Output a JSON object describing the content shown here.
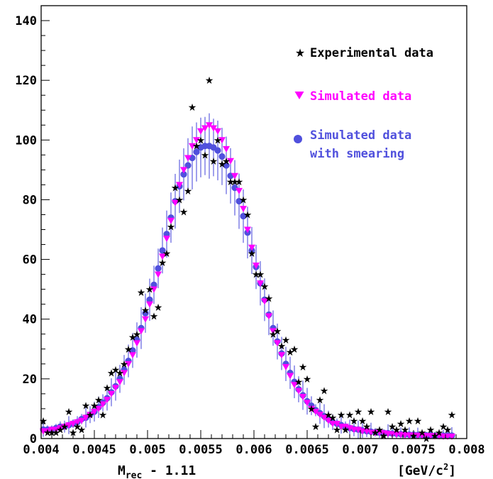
{
  "chart_data": {
    "type": "scatter",
    "xlim": [
      0.004,
      0.008
    ],
    "ylim": [
      0,
      145
    ],
    "x_ticks": [
      0.004,
      0.0045,
      0.005,
      0.0055,
      0.006,
      0.0065,
      0.007,
      0.0075,
      0.008
    ],
    "x_tick_labels": [
      "0.004",
      "0.0045",
      "0.005",
      "0.0055",
      "0.006",
      "0.0065",
      "0.007",
      "0.0075",
      "0.008"
    ],
    "y_ticks": [
      0,
      20,
      40,
      60,
      80,
      100,
      120,
      140
    ],
    "y_tick_labels": [
      "0",
      "20",
      "40",
      "60",
      "80",
      "100",
      "120",
      "140"
    ],
    "xlabel": {
      "main": "M",
      "sub": "rec",
      "rest": " - 1.11"
    },
    "xunit": {
      "pre": "[GeV/c",
      "sup": "2",
      "post": "]"
    },
    "legend_position": "top-right",
    "series": [
      {
        "name": "Experimental data",
        "marker": "star",
        "color": "#000000",
        "points": [
          [
            0.00402,
            6
          ],
          [
            0.00406,
            2
          ],
          [
            0.0041,
            2
          ],
          [
            0.00414,
            2
          ],
          [
            0.00418,
            3
          ],
          [
            0.00422,
            4
          ],
          [
            0.00426,
            9
          ],
          [
            0.0043,
            2
          ],
          [
            0.00434,
            4
          ],
          [
            0.00438,
            3
          ],
          [
            0.00442,
            11
          ],
          [
            0.00446,
            8
          ],
          [
            0.0045,
            11
          ],
          [
            0.00454,
            13
          ],
          [
            0.00458,
            8
          ],
          [
            0.00462,
            17
          ],
          [
            0.00466,
            22
          ],
          [
            0.0047,
            23
          ],
          [
            0.00474,
            22
          ],
          [
            0.00478,
            25
          ],
          [
            0.00482,
            30
          ],
          [
            0.00486,
            34
          ],
          [
            0.0049,
            35
          ],
          [
            0.00494,
            49
          ],
          [
            0.00498,
            43
          ],
          [
            0.00502,
            50
          ],
          [
            0.00506,
            41
          ],
          [
            0.0051,
            44
          ],
          [
            0.00514,
            59
          ],
          [
            0.00518,
            62
          ],
          [
            0.00522,
            71
          ],
          [
            0.00526,
            84
          ],
          [
            0.0053,
            80
          ],
          [
            0.00534,
            76
          ],
          [
            0.00538,
            83
          ],
          [
            0.00542,
            111
          ],
          [
            0.00546,
            98
          ],
          [
            0.0055,
            100
          ],
          [
            0.00554,
            95
          ],
          [
            0.00558,
            120
          ],
          [
            0.00562,
            93
          ],
          [
            0.00566,
            100
          ],
          [
            0.0057,
            92
          ],
          [
            0.00574,
            93
          ],
          [
            0.00578,
            86
          ],
          [
            0.00582,
            86
          ],
          [
            0.00586,
            86
          ],
          [
            0.0059,
            80
          ],
          [
            0.00594,
            75
          ],
          [
            0.00598,
            62
          ],
          [
            0.00602,
            55
          ],
          [
            0.00606,
            55
          ],
          [
            0.0061,
            51
          ],
          [
            0.00614,
            47
          ],
          [
            0.00618,
            35
          ],
          [
            0.00622,
            36
          ],
          [
            0.00626,
            31
          ],
          [
            0.0063,
            33
          ],
          [
            0.00634,
            29
          ],
          [
            0.00638,
            30
          ],
          [
            0.00642,
            19
          ],
          [
            0.00646,
            24
          ],
          [
            0.0065,
            20
          ],
          [
            0.00654,
            10
          ],
          [
            0.00658,
            4
          ],
          [
            0.00662,
            13
          ],
          [
            0.00666,
            16
          ],
          [
            0.0067,
            8
          ],
          [
            0.00674,
            7
          ],
          [
            0.00678,
            3
          ],
          [
            0.00682,
            8
          ],
          [
            0.00686,
            3
          ],
          [
            0.0069,
            8
          ],
          [
            0.00694,
            6
          ],
          [
            0.00698,
            9
          ],
          [
            0.00702,
            6
          ],
          [
            0.00706,
            4
          ],
          [
            0.0071,
            9
          ],
          [
            0.00714,
            2
          ],
          [
            0.00718,
            3
          ],
          [
            0.00722,
            1
          ],
          [
            0.00726,
            9
          ],
          [
            0.0073,
            4
          ],
          [
            0.00734,
            3
          ],
          [
            0.00738,
            5
          ],
          [
            0.00742,
            3
          ],
          [
            0.00746,
            6
          ],
          [
            0.0075,
            1
          ],
          [
            0.00754,
            6
          ],
          [
            0.00758,
            2
          ],
          [
            0.00762,
            0
          ],
          [
            0.00766,
            3
          ],
          [
            0.0077,
            1
          ],
          [
            0.00774,
            2
          ],
          [
            0.00778,
            4
          ],
          [
            0.00782,
            3
          ],
          [
            0.00786,
            8
          ]
        ]
      },
      {
        "name": "Simulated data",
        "marker": "triangle-down",
        "color": "#ff00ff",
        "points": [
          [
            0.00402,
            2.5
          ],
          [
            0.00406,
            2.5
          ],
          [
            0.0041,
            3
          ],
          [
            0.00414,
            3
          ],
          [
            0.00418,
            3.5
          ],
          [
            0.00422,
            4
          ],
          [
            0.00426,
            4.5
          ],
          [
            0.0043,
            5
          ],
          [
            0.00434,
            5.5
          ],
          [
            0.00438,
            6
          ],
          [
            0.00442,
            7
          ],
          [
            0.00446,
            8
          ],
          [
            0.0045,
            9
          ],
          [
            0.00454,
            10
          ],
          [
            0.00458,
            11.5
          ],
          [
            0.00462,
            13
          ],
          [
            0.00466,
            15
          ],
          [
            0.0047,
            17
          ],
          [
            0.00474,
            19
          ],
          [
            0.00478,
            22
          ],
          [
            0.00482,
            25
          ],
          [
            0.00486,
            28
          ],
          [
            0.0049,
            32
          ],
          [
            0.00494,
            36
          ],
          [
            0.00498,
            40
          ],
          [
            0.00502,
            45
          ],
          [
            0.00506,
            50
          ],
          [
            0.0051,
            55
          ],
          [
            0.00514,
            61
          ],
          [
            0.00518,
            67
          ],
          [
            0.00522,
            73
          ],
          [
            0.00526,
            79
          ],
          [
            0.0053,
            85
          ],
          [
            0.00534,
            90
          ],
          [
            0.00538,
            94
          ],
          [
            0.00542,
            98
          ],
          [
            0.00546,
            100
          ],
          [
            0.0055,
            103
          ],
          [
            0.00554,
            104
          ],
          [
            0.00558,
            105
          ],
          [
            0.00562,
            104
          ],
          [
            0.00566,
            103
          ],
          [
            0.0057,
            100
          ],
          [
            0.00574,
            97
          ],
          [
            0.00578,
            93
          ],
          [
            0.00582,
            88
          ],
          [
            0.00586,
            83
          ],
          [
            0.0059,
            77
          ],
          [
            0.00594,
            70
          ],
          [
            0.00598,
            64
          ],
          [
            0.00602,
            58
          ],
          [
            0.00606,
            52
          ],
          [
            0.0061,
            46
          ],
          [
            0.00614,
            41
          ],
          [
            0.00618,
            36
          ],
          [
            0.00622,
            32
          ],
          [
            0.00626,
            28
          ],
          [
            0.0063,
            24
          ],
          [
            0.00634,
            21
          ],
          [
            0.00638,
            18
          ],
          [
            0.00642,
            16
          ],
          [
            0.00646,
            14
          ],
          [
            0.0065,
            12
          ],
          [
            0.00654,
            10
          ],
          [
            0.00658,
            9
          ],
          [
            0.00662,
            8
          ],
          [
            0.00666,
            7
          ],
          [
            0.0067,
            6
          ],
          [
            0.00674,
            5
          ],
          [
            0.00678,
            5
          ],
          [
            0.00682,
            4
          ],
          [
            0.00686,
            4
          ],
          [
            0.0069,
            3.5
          ],
          [
            0.00694,
            3
          ],
          [
            0.00698,
            3
          ],
          [
            0.00702,
            2.5
          ],
          [
            0.00706,
            2.5
          ],
          [
            0.0071,
            2
          ],
          [
            0.00714,
            2
          ],
          [
            0.00718,
            2
          ],
          [
            0.00722,
            1.8
          ],
          [
            0.00726,
            1.6
          ],
          [
            0.0073,
            1.5
          ],
          [
            0.00734,
            1.4
          ],
          [
            0.00738,
            1.3
          ],
          [
            0.00742,
            1.2
          ],
          [
            0.00746,
            1.1
          ],
          [
            0.0075,
            1
          ],
          [
            0.00754,
            1
          ],
          [
            0.00758,
            1
          ],
          [
            0.00762,
            0.9
          ],
          [
            0.00766,
            0.9
          ],
          [
            0.0077,
            0.8
          ],
          [
            0.00774,
            0.8
          ],
          [
            0.00778,
            0.7
          ],
          [
            0.00782,
            0.7
          ],
          [
            0.00786,
            0.7
          ]
        ]
      },
      {
        "name": "Simulated data\nwith smearing",
        "marker": "circle",
        "color": "#5050dd",
        "points": [
          [
            0.00402,
            3
          ],
          [
            0.00406,
            3
          ],
          [
            0.0041,
            3
          ],
          [
            0.00414,
            3.5
          ],
          [
            0.00418,
            4
          ],
          [
            0.00422,
            4
          ],
          [
            0.00426,
            4.5
          ],
          [
            0.0043,
            5
          ],
          [
            0.00434,
            5.5
          ],
          [
            0.00438,
            6.5
          ],
          [
            0.00442,
            7
          ],
          [
            0.00446,
            8
          ],
          [
            0.0045,
            9
          ],
          [
            0.00454,
            10.5
          ],
          [
            0.00458,
            12
          ],
          [
            0.00462,
            13.5
          ],
          [
            0.00466,
            15.5
          ],
          [
            0.0047,
            17.5
          ],
          [
            0.00474,
            20
          ],
          [
            0.00478,
            23
          ],
          [
            0.00482,
            26
          ],
          [
            0.00486,
            29.5
          ],
          [
            0.0049,
            33
          ],
          [
            0.00494,
            37
          ],
          [
            0.00498,
            42
          ],
          [
            0.00502,
            46.5
          ],
          [
            0.00506,
            51.5
          ],
          [
            0.0051,
            57
          ],
          [
            0.00514,
            63
          ],
          [
            0.00518,
            68.5
          ],
          [
            0.00522,
            74
          ],
          [
            0.00526,
            79.5
          ],
          [
            0.0053,
            84.5
          ],
          [
            0.00534,
            88.5
          ],
          [
            0.00538,
            91.5
          ],
          [
            0.00542,
            94
          ],
          [
            0.00546,
            96
          ],
          [
            0.0055,
            97.5
          ],
          [
            0.00554,
            98
          ],
          [
            0.00558,
            98
          ],
          [
            0.00562,
            97.5
          ],
          [
            0.00566,
            96.5
          ],
          [
            0.0057,
            94.5
          ],
          [
            0.00574,
            91.5
          ],
          [
            0.00578,
            88
          ],
          [
            0.00582,
            84
          ],
          [
            0.00586,
            79.5
          ],
          [
            0.0059,
            74.5
          ],
          [
            0.00594,
            69
          ],
          [
            0.00598,
            63
          ],
          [
            0.00602,
            57.5
          ],
          [
            0.00606,
            52
          ],
          [
            0.0061,
            46.5
          ],
          [
            0.00614,
            41.5
          ],
          [
            0.00618,
            37
          ],
          [
            0.00622,
            32.5
          ],
          [
            0.00626,
            28.5
          ],
          [
            0.0063,
            25
          ],
          [
            0.00634,
            22
          ],
          [
            0.00638,
            19
          ],
          [
            0.00642,
            16.5
          ],
          [
            0.00646,
            14.5
          ],
          [
            0.0065,
            12.5
          ],
          [
            0.00654,
            11
          ],
          [
            0.00658,
            9.5
          ],
          [
            0.00662,
            8.5
          ],
          [
            0.00666,
            7.5
          ],
          [
            0.0067,
            6.5
          ],
          [
            0.00674,
            5.5
          ],
          [
            0.00678,
            5
          ],
          [
            0.00682,
            4.5
          ],
          [
            0.00686,
            4
          ],
          [
            0.0069,
            3.5
          ],
          [
            0.00694,
            3.2
          ],
          [
            0.00698,
            3
          ],
          [
            0.00702,
            2.7
          ],
          [
            0.00706,
            2.5
          ],
          [
            0.0071,
            2.3
          ],
          [
            0.00714,
            2.1
          ],
          [
            0.00718,
            2
          ],
          [
            0.00722,
            1.9
          ],
          [
            0.00726,
            1.8
          ],
          [
            0.0073,
            1.7
          ],
          [
            0.00734,
            1.6
          ],
          [
            0.00738,
            1.5
          ],
          [
            0.00742,
            1.4
          ],
          [
            0.00746,
            1.3
          ],
          [
            0.0075,
            1.3
          ],
          [
            0.00754,
            1.2
          ],
          [
            0.00758,
            1.2
          ],
          [
            0.00762,
            1.1
          ],
          [
            0.00766,
            1.1
          ],
          [
            0.0077,
            1
          ],
          [
            0.00774,
            1
          ],
          [
            0.00778,
            1
          ],
          [
            0.00782,
            1
          ],
          [
            0.00786,
            1
          ]
        ]
      }
    ]
  }
}
